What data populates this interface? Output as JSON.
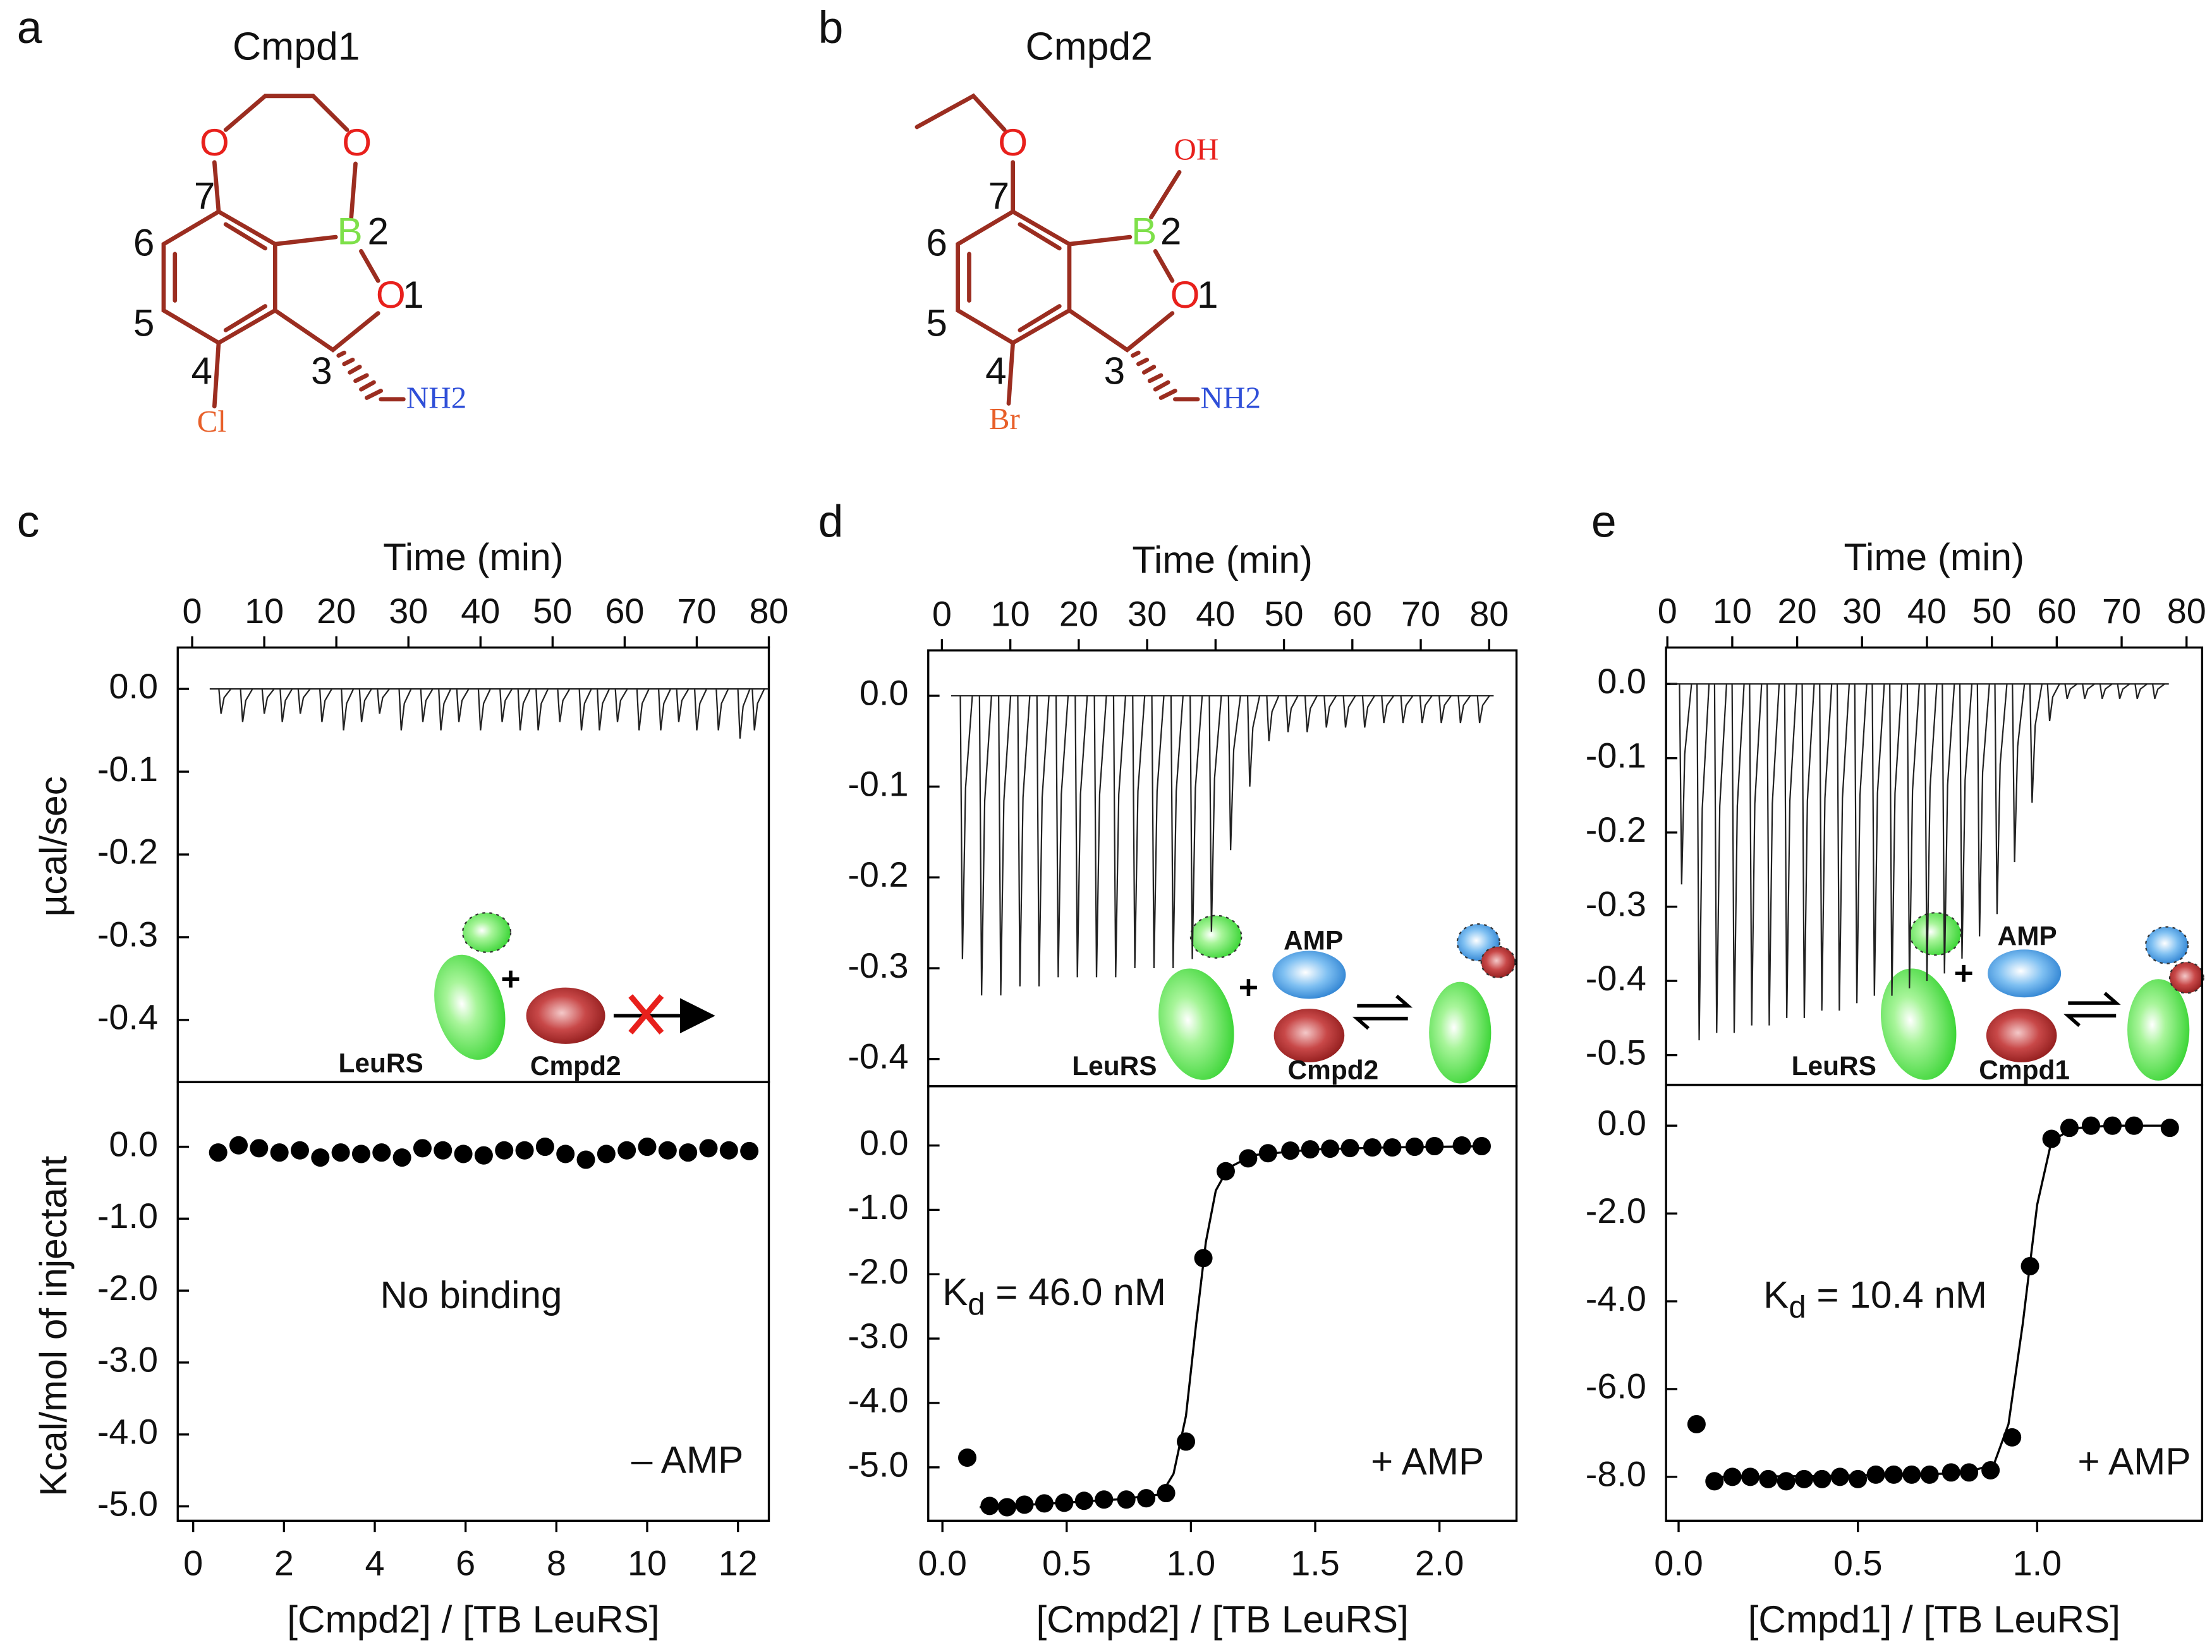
{
  "panel_labels": [
    "a",
    "b",
    "c",
    "d",
    "e"
  ],
  "structures": [
    {
      "name": "Cmpd1",
      "atoms": [
        "O",
        "O",
        "B",
        "O",
        "NH2",
        "Cl"
      ],
      "locants": [
        "1",
        "2",
        "3",
        "4",
        "5",
        "6",
        "7"
      ]
    },
    {
      "name": "Cmpd2",
      "atoms": [
        "O",
        "OH",
        "B",
        "O",
        "NH2",
        "Br"
      ],
      "locants": [
        "1",
        "2",
        "3",
        "4",
        "5",
        "6",
        "7"
      ]
    }
  ],
  "chart_data": [
    {
      "type": "thermogram",
      "xlabel": "Time (min)",
      "ylabel": "µcal/sec",
      "x": [
        4,
        7,
        10,
        12.5,
        15,
        18,
        21,
        23.5,
        26,
        29,
        32,
        34.5,
        37,
        40,
        43,
        45.5,
        48,
        51,
        54,
        56.5,
        59,
        62,
        65,
        67.5,
        70,
        73,
        76,
        78
      ],
      "values": [
        -0.03,
        -0.04,
        -0.03,
        -0.04,
        -0.03,
        -0.04,
        -0.05,
        -0.04,
        -0.03,
        -0.05,
        -0.04,
        -0.05,
        -0.04,
        -0.05,
        -0.04,
        -0.05,
        -0.05,
        -0.04,
        -0.05,
        -0.05,
        -0.04,
        -0.05,
        -0.05,
        -0.04,
        -0.05,
        -0.05,
        -0.06,
        -0.05
      ],
      "xlim": [
        -2,
        80
      ],
      "ylim": [
        -0.475,
        0.05
      ],
      "xticks": [
        0,
        10,
        20,
        30,
        40,
        50,
        60,
        70,
        80
      ],
      "yticks": [
        {
          "value": 0,
          "label": "0.0"
        },
        {
          "value": -0.1,
          "label": "-0.1"
        },
        {
          "value": -0.2,
          "label": "-0.2"
        },
        {
          "value": -0.3,
          "label": "-0.3"
        },
        {
          "value": -0.4,
          "label": "-0.4"
        }
      ],
      "inset_labels": [
        "LeuRS",
        "Cmpd2"
      ]
    },
    {
      "type": "scatter",
      "xlabel": "[Cmpd2] / [TB LeuRS]",
      "ylabel": "Kcal/mol of injectant",
      "x": [
        0.55,
        1.0,
        1.45,
        1.9,
        2.35,
        2.8,
        3.25,
        3.7,
        4.15,
        4.6,
        5.05,
        5.5,
        5.95,
        6.4,
        6.85,
        7.3,
        7.75,
        8.2,
        8.65,
        9.1,
        9.55,
        10.0,
        10.45,
        10.9,
        11.35,
        11.8,
        12.25
      ],
      "values": [
        -0.08,
        0.02,
        -0.02,
        -0.08,
        -0.05,
        -0.15,
        -0.08,
        -0.1,
        -0.08,
        -0.15,
        -0.02,
        -0.05,
        -0.1,
        -0.12,
        -0.05,
        -0.05,
        0.0,
        -0.1,
        -0.18,
        -0.1,
        -0.05,
        0.0,
        -0.05,
        -0.08,
        -0.02,
        -0.05,
        -0.06
      ],
      "xlim": [
        -0.34,
        12.68
      ],
      "ylim": [
        -5.2,
        0.9
      ],
      "xticks": [
        0,
        2,
        4,
        6,
        8,
        10,
        12
      ],
      "yticks": [
        {
          "value": 0,
          "label": "0.0"
        },
        {
          "value": -1,
          "label": "-1.0"
        },
        {
          "value": -2,
          "label": "-2.0"
        },
        {
          "value": -3,
          "label": "-3.0"
        },
        {
          "value": -4,
          "label": "-4.0"
        },
        {
          "value": -5,
          "label": "-5.0"
        }
      ],
      "annotations": [
        "No binding",
        "– AMP"
      ]
    },
    {
      "type": "thermogram",
      "xlabel": "Time (min)",
      "x": [
        3,
        5.8,
        8.6,
        11.4,
        14.2,
        17,
        19.8,
        22.6,
        25.4,
        28.2,
        31,
        33.8,
        36.6,
        39.4,
        42.2,
        45,
        47.8,
        50.6,
        53.4,
        56.2,
        59,
        61.8,
        64.6,
        67.4,
        70.2,
        73,
        75.8,
        78.6
      ],
      "values": [
        -0.29,
        -0.33,
        -0.33,
        -0.32,
        -0.32,
        -0.31,
        -0.31,
        -0.31,
        -0.31,
        -0.3,
        -0.3,
        -0.3,
        -0.29,
        -0.26,
        -0.17,
        -0.1,
        -0.05,
        -0.04,
        -0.04,
        -0.035,
        -0.035,
        -0.035,
        -0.03,
        -0.03,
        -0.03,
        -0.03,
        -0.03,
        -0.03
      ],
      "xlim": [
        -2,
        84
      ],
      "ylim": [
        -0.43,
        0.05
      ],
      "xticks": [
        0,
        10,
        20,
        30,
        40,
        50,
        60,
        70,
        80
      ],
      "yticks": [
        {
          "value": 0,
          "label": "0.0"
        },
        {
          "value": -0.1,
          "label": "-0.1"
        },
        {
          "value": -0.2,
          "label": "-0.2"
        },
        {
          "value": -0.3,
          "label": "-0.3"
        },
        {
          "value": -0.4,
          "label": "-0.4"
        }
      ],
      "inset_labels": [
        "AMP",
        "LeuRS",
        "Cmpd2"
      ]
    },
    {
      "type": "scatter",
      "xlabel": "[Cmpd2] / [TB LeuRS]",
      "x": [
        0.1,
        0.19,
        0.26,
        0.33,
        0.41,
        0.49,
        0.57,
        0.65,
        0.74,
        0.82,
        0.9,
        0.98,
        1.05,
        1.14,
        1.23,
        1.31,
        1.4,
        1.48,
        1.56,
        1.64,
        1.73,
        1.81,
        1.9,
        1.98,
        2.09,
        2.17
      ],
      "values": [
        -4.85,
        -5.6,
        -5.62,
        -5.58,
        -5.56,
        -5.55,
        -5.52,
        -5.5,
        -5.5,
        -5.48,
        -5.4,
        -4.6,
        -1.75,
        -0.4,
        -0.2,
        -0.12,
        -0.08,
        -0.06,
        -0.05,
        -0.04,
        -0.03,
        -0.03,
        -0.02,
        -0.01,
        0,
        -0.01
      ],
      "fit": {
        "x": [
          0.15,
          0.4,
          0.7,
          0.88,
          0.93,
          0.98,
          1.02,
          1.06,
          1.1,
          1.15,
          1.25,
          1.5,
          1.8,
          2.2
        ],
        "values": [
          -5.62,
          -5.57,
          -5.5,
          -5.42,
          -5.1,
          -4.2,
          -2.8,
          -1.5,
          -0.7,
          -0.35,
          -0.15,
          -0.06,
          -0.03,
          -0.01
        ]
      },
      "xlim": [
        -0.057,
        2.31
      ],
      "ylim": [
        -5.83,
        0.92
      ],
      "xticks": [
        {
          "value": 0,
          "label": "0.0"
        },
        {
          "value": 0.5,
          "label": "0.5"
        },
        {
          "value": 1,
          "label": "1.0"
        },
        {
          "value": 1.5,
          "label": "1.5"
        },
        {
          "value": 2,
          "label": "2.0"
        }
      ],
      "yticks": [
        {
          "value": 0,
          "label": "0.0"
        },
        {
          "value": -1,
          "label": "-1.0"
        },
        {
          "value": -2,
          "label": "-2.0"
        },
        {
          "value": -3,
          "label": "-3.0"
        },
        {
          "value": -4,
          "label": "-4.0"
        },
        {
          "value": -5,
          "label": "-5.0"
        }
      ],
      "kd": {
        "symbol": "K",
        "subscript": "d",
        "text": " = 46.0 nM"
      },
      "annotations": [
        "+ AMP"
      ]
    },
    {
      "type": "thermogram",
      "xlabel": "Time (min)",
      "x": [
        2.2,
        4.9,
        7.6,
        10.3,
        13,
        15.7,
        18.4,
        21.1,
        23.8,
        26.5,
        29.2,
        31.9,
        34.6,
        37.3,
        40,
        42.7,
        45.4,
        48.1,
        50.8,
        53.5,
        56.2,
        58.9,
        61.6,
        64.3,
        67,
        69.7,
        72.4,
        75.1
      ],
      "values": [
        -0.27,
        -0.48,
        -0.47,
        -0.47,
        -0.46,
        -0.46,
        -0.45,
        -0.45,
        -0.44,
        -0.44,
        -0.43,
        -0.42,
        -0.42,
        -0.41,
        -0.4,
        -0.39,
        -0.37,
        -0.34,
        -0.31,
        -0.24,
        -0.16,
        -0.05,
        -0.02,
        -0.02,
        -0.02,
        -0.02,
        -0.02,
        -0.02
      ],
      "xlim": [
        -0.2,
        82.4
      ],
      "ylim": [
        -0.54,
        0.049
      ],
      "xticks": [
        0,
        10,
        20,
        30,
        40,
        50,
        60,
        70,
        80
      ],
      "yticks": [
        {
          "value": 0,
          "label": "0.0"
        },
        {
          "value": -0.1,
          "label": "-0.1"
        },
        {
          "value": -0.2,
          "label": "-0.2"
        },
        {
          "value": -0.3,
          "label": "-0.3"
        },
        {
          "value": -0.4,
          "label": "-0.4"
        },
        {
          "value": -0.5,
          "label": "-0.5"
        }
      ],
      "inset_labels": [
        "AMP",
        "LeuRS",
        "Cmpd1"
      ]
    },
    {
      "type": "scatter",
      "xlabel": "[Cmpd1] /  [TB LeuRS]",
      "x": [
        0.05,
        0.1,
        0.15,
        0.2,
        0.25,
        0.3,
        0.35,
        0.4,
        0.45,
        0.5,
        0.55,
        0.6,
        0.65,
        0.7,
        0.76,
        0.81,
        0.87,
        0.93,
        0.98,
        1.04,
        1.09,
        1.15,
        1.21,
        1.27,
        1.37
      ],
      "values": [
        -6.8,
        -8.1,
        -8.0,
        -8.0,
        -8.05,
        -8.1,
        -8.05,
        -8.05,
        -8.0,
        -8.05,
        -7.95,
        -7.95,
        -7.95,
        -7.95,
        -7.9,
        -7.9,
        -7.85,
        -7.1,
        -3.2,
        -0.3,
        -0.05,
        0,
        0,
        0,
        -0.05
      ],
      "fit": {
        "x": [
          0.08,
          0.4,
          0.8,
          0.88,
          0.92,
          0.96,
          1.0,
          1.04,
          1.1,
          1.2,
          1.37
        ],
        "values": [
          -8.0,
          -7.98,
          -7.92,
          -7.7,
          -6.8,
          -4.5,
          -1.8,
          -0.35,
          -0.06,
          0,
          0
        ]
      },
      "xlim": [
        -0.035,
        1.46
      ],
      "ylim": [
        -9.0,
        0.93
      ],
      "xticks": [
        {
          "value": 0,
          "label": "0.0"
        },
        {
          "value": 0.5,
          "label": "0.5"
        },
        {
          "value": 1,
          "label": "1.0"
        }
      ],
      "yticks": [
        {
          "value": 0,
          "label": "0.0"
        },
        {
          "value": -2,
          "label": "-2.0"
        },
        {
          "value": -4,
          "label": "-4.0"
        },
        {
          "value": -6,
          "label": "-6.0"
        },
        {
          "value": -8,
          "label": "-8.0"
        }
      ],
      "kd": {
        "symbol": "K",
        "subscript": "d",
        "text": " = 10.4 nM"
      },
      "annotations": [
        "+ AMP"
      ]
    }
  ]
}
